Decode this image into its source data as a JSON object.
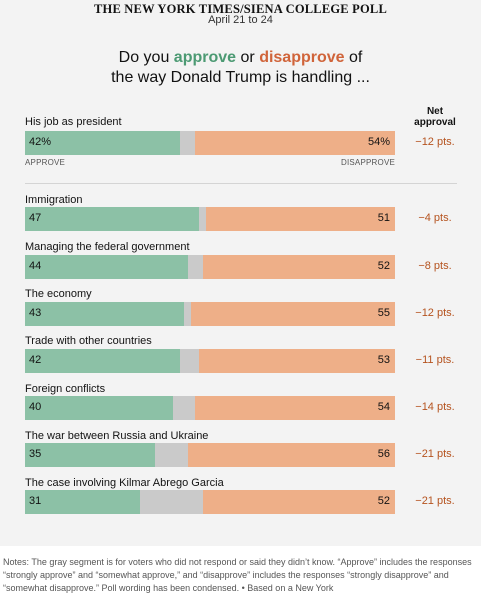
{
  "header": {
    "poll_title": "THE NEW YORK TIMES/SIENA COLLEGE POLL",
    "dates": "April 21 to 24",
    "question_prefix": "Do you",
    "approve_word": "approve",
    "question_or": "or",
    "disapprove_word": "disapprove",
    "question_suffix": "of",
    "question_line2": "the way Donald Trump is handling ..."
  },
  "net_header": {
    "line1": "Net",
    "line2": "approval"
  },
  "labels": {
    "approve": "APPROVE",
    "disapprove": "DISAPPROVE"
  },
  "colors": {
    "approve": "#8cc1a6",
    "unsure": "#cacaca",
    "disapprove": "#eeaf88",
    "net_text": "#b5531f"
  },
  "chart_data": {
    "type": "bar",
    "orientation": "horizontal-stacked",
    "categories": [
      "His job as president",
      "Immigration",
      "Managing the federal government",
      "The economy",
      "Trade with other countries",
      "Foreign conflicts",
      "The war between Russia and Ukraine",
      "The case involving Kilmar Abrego Garcia"
    ],
    "series": [
      {
        "name": "Approve",
        "values": [
          42,
          47,
          44,
          43,
          42,
          40,
          35,
          31
        ]
      },
      {
        "name": "",
        "values": [
          4,
          2,
          4,
          2,
          5,
          6,
          9,
          17
        ]
      },
      {
        "name": "Disapprove",
        "values": [
          54,
          51,
          52,
          55,
          53,
          54,
          56,
          52
        ]
      }
    ],
    "approve_display": [
      "42%",
      "47",
      "44",
      "43",
      "42",
      "40",
      "35",
      "31"
    ],
    "disapprove_display": [
      "54%",
      "51",
      "52",
      "55",
      "53",
      "54",
      "56",
      "52"
    ],
    "net_approval": [
      "−12 pts.",
      "−4 pts.",
      "−8 pts.",
      "−12 pts.",
      "−11 pts.",
      "−14 pts.",
      "−21 pts.",
      "−21 pts."
    ]
  },
  "notes": "Notes: The gray segment is for voters who did not respond or said they didn’t know. “Approve” includes the responses “strongly approve” and “somewhat approve,” and “disapprove” includes the responses “strongly disapprove” and “somewhat disapprove.” Poll wording has been condensed. • Based on a New York"
}
